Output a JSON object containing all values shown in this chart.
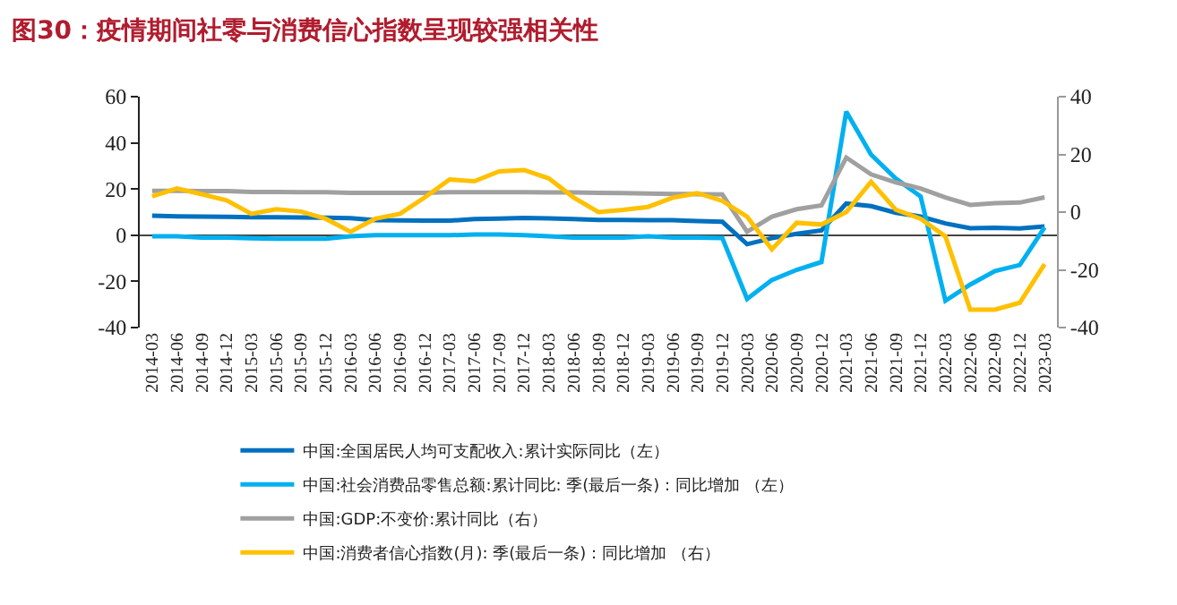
{
  "chart_data": {
    "type": "line",
    "title": "图30：疫情期间社零与消费信心指数呈现较强相关性",
    "categories": [
      "2014-03",
      "2014-06",
      "2014-09",
      "2014-12",
      "2015-03",
      "2015-06",
      "2015-09",
      "2015-12",
      "2016-03",
      "2016-06",
      "2016-09",
      "2016-12",
      "2017-03",
      "2017-06",
      "2017-09",
      "2017-12",
      "2018-03",
      "2018-06",
      "2018-09",
      "2018-12",
      "2019-03",
      "2019-06",
      "2019-09",
      "2019-12",
      "2020-03",
      "2020-06",
      "2020-09",
      "2020-12",
      "2021-03",
      "2021-06",
      "2021-09",
      "2021-12",
      "2022-03",
      "2022-06",
      "2022-09",
      "2022-12",
      "2023-03"
    ],
    "series": [
      {
        "name": "中国:全国居民人均可支配收入:累计实际同比（左）",
        "color": "#0070c0",
        "axis": "y",
        "values": [
          8.4,
          8.2,
          8.1,
          8.0,
          7.8,
          7.8,
          7.7,
          7.6,
          7.4,
          6.5,
          6.4,
          6.3,
          6.3,
          7.0,
          7.2,
          7.5,
          7.3,
          7.0,
          6.6,
          6.6,
          6.5,
          6.5,
          6.1,
          5.8,
          -3.9,
          -1.3,
          0.6,
          2.1,
          13.7,
          12.6,
          9.7,
          8.1,
          5.1,
          3.0,
          3.2,
          2.9,
          3.8
        ]
      },
      {
        "name": "中国:社会消费品零售总额:累计同比: 季(最后一条) : 同比增加 （左）",
        "color": "#00b0f0",
        "axis": "y",
        "values": [
          -0.5,
          -0.5,
          -1,
          -1,
          -1.3,
          -1.5,
          -1.5,
          -1.5,
          -0.5,
          0,
          0,
          0,
          0,
          0.3,
          0.3,
          0,
          -0.5,
          -1,
          -1,
          -1,
          -0.5,
          -1,
          -1,
          -1.2,
          -27.6,
          -19.4,
          -15,
          -11.6,
          53.5,
          34.9,
          24.5,
          16.8,
          -28.4,
          -21.4,
          -15.5,
          -12.9,
          3.4
        ]
      },
      {
        "name": "中国:GDP:不变价:累计同比（右）",
        "color": "#a0a0a0",
        "axis": "y2",
        "values": [
          7.4,
          7.4,
          7.3,
          7.3,
          7.0,
          7.0,
          6.9,
          6.9,
          6.7,
          6.7,
          6.7,
          6.7,
          6.9,
          6.9,
          6.9,
          6.9,
          6.8,
          6.8,
          6.7,
          6.6,
          6.4,
          6.3,
          6.2,
          6.1,
          -6.8,
          -1.6,
          1.0,
          2.3,
          18.9,
          13.1,
          10.3,
          8.2,
          5.1,
          2.5,
          3.1,
          3.3,
          5.1
        ]
      },
      {
        "name": "中国:消费者信心指数(月): 季(最后一条) : 同比增加 （右）",
        "color": "#ffc000",
        "axis": "y2",
        "values": [
          5.5,
          8.2,
          6.2,
          4.1,
          -0.6,
          1,
          0.2,
          -2.3,
          -6.8,
          -2.3,
          -0.6,
          5.1,
          11.3,
          10.7,
          14.1,
          14.6,
          11.7,
          5.1,
          0,
          0.8,
          1.8,
          5,
          6.6,
          3.9,
          -1.6,
          -12.9,
          -3.7,
          -4.3,
          0,
          10.5,
          0.8,
          -2.3,
          -8.4,
          -33.8,
          -33.8,
          -31.4,
          -18
        ]
      }
    ],
    "ylim": [
      -40,
      60
    ],
    "yticks": [
      -40,
      -20,
      0,
      20,
      40,
      60
    ],
    "y2lim": [
      -40,
      40
    ],
    "y2ticks": [
      -40,
      -20,
      0,
      20,
      40
    ],
    "legend": "bottom"
  }
}
